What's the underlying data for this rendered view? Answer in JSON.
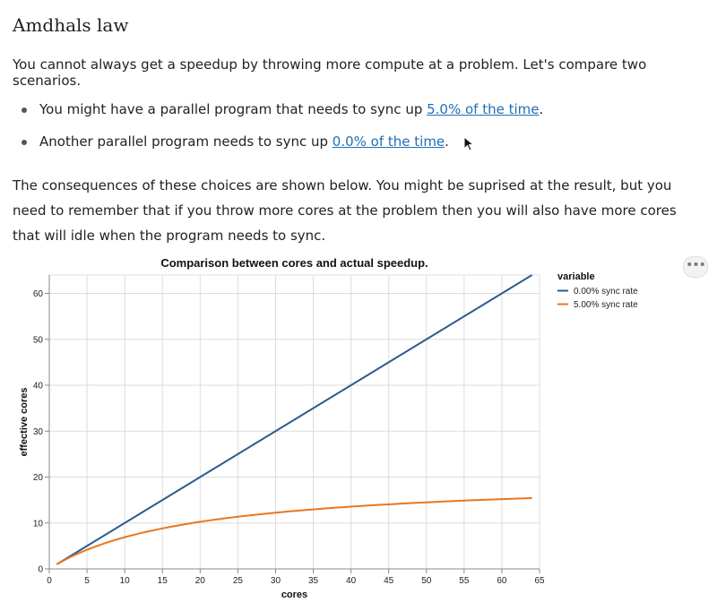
{
  "page": {
    "title": "Amdhals law",
    "intro": "You cannot always get a speedup by throwing more compute at a problem. Let's compare two scenarios.",
    "bullets": [
      {
        "prefix": "You might have a parallel program that needs to sync up ",
        "link": "5.0% of the time",
        "suffix": "."
      },
      {
        "prefix": "Another parallel program needs to sync up ",
        "link": "0.0% of the time",
        "suffix": "."
      }
    ],
    "consequences": "The consequences of these choices are shown below. You might be suprised at the result, but you need to remember that if you throw more cores at the problem then you will also have more cores that will idle when the program needs to sync.",
    "menu_label": "•••"
  },
  "chart_data": {
    "type": "line",
    "title": "Comparison between cores and actual speedup.",
    "xlabel": "cores",
    "ylabel": "effective cores",
    "xlim": [
      0,
      65
    ],
    "ylim": [
      0,
      64
    ],
    "xticks": [
      0,
      5,
      10,
      15,
      20,
      25,
      30,
      35,
      40,
      45,
      50,
      55,
      60,
      65
    ],
    "yticks": [
      0,
      10,
      20,
      30,
      40,
      50,
      60
    ],
    "grid": true,
    "legend_title": "variable",
    "legend_position": "right",
    "x": [
      1,
      2,
      3,
      4,
      5,
      6,
      7,
      8,
      9,
      10,
      11,
      12,
      13,
      14,
      15,
      16,
      17,
      18,
      19,
      20,
      21,
      22,
      23,
      24,
      25,
      26,
      27,
      28,
      29,
      30,
      31,
      32,
      33,
      34,
      35,
      36,
      37,
      38,
      39,
      40,
      41,
      42,
      43,
      44,
      45,
      46,
      47,
      48,
      49,
      50,
      51,
      52,
      53,
      54,
      55,
      56,
      57,
      58,
      59,
      60,
      61,
      62,
      63,
      64
    ],
    "series": [
      {
        "name": "0.00% sync rate",
        "color": "#2c5d8f",
        "values": [
          1,
          2,
          3,
          4,
          5,
          6,
          7,
          8,
          9,
          10,
          11,
          12,
          13,
          14,
          15,
          16,
          17,
          18,
          19,
          20,
          21,
          22,
          23,
          24,
          25,
          26,
          27,
          28,
          29,
          30,
          31,
          32,
          33,
          34,
          35,
          36,
          37,
          38,
          39,
          40,
          41,
          42,
          43,
          44,
          45,
          46,
          47,
          48,
          49,
          50,
          51,
          52,
          53,
          54,
          55,
          56,
          57,
          58,
          59,
          60,
          61,
          62,
          63,
          64
        ]
      },
      {
        "name": "5.00% sync rate",
        "color": "#e8761f",
        "values": [
          1.0,
          1.9,
          2.73,
          3.48,
          4.17,
          4.8,
          5.38,
          5.93,
          6.43,
          6.9,
          7.33,
          7.74,
          8.12,
          8.48,
          8.82,
          9.14,
          9.44,
          9.73,
          10.0,
          10.26,
          10.5,
          10.74,
          10.96,
          11.16,
          11.36,
          11.55,
          11.74,
          11.91,
          12.08,
          12.24,
          12.4,
          12.55,
          12.69,
          12.83,
          12.96,
          13.09,
          13.21,
          13.33,
          13.45,
          13.56,
          13.67,
          13.77,
          13.87,
          13.97,
          14.06,
          14.15,
          14.24,
          14.33,
          14.41,
          14.49,
          14.57,
          14.65,
          14.72,
          14.8,
          14.87,
          14.94,
          15.0,
          15.07,
          15.13,
          15.19,
          15.25,
          15.31,
          15.37,
          15.42
        ]
      }
    ]
  }
}
